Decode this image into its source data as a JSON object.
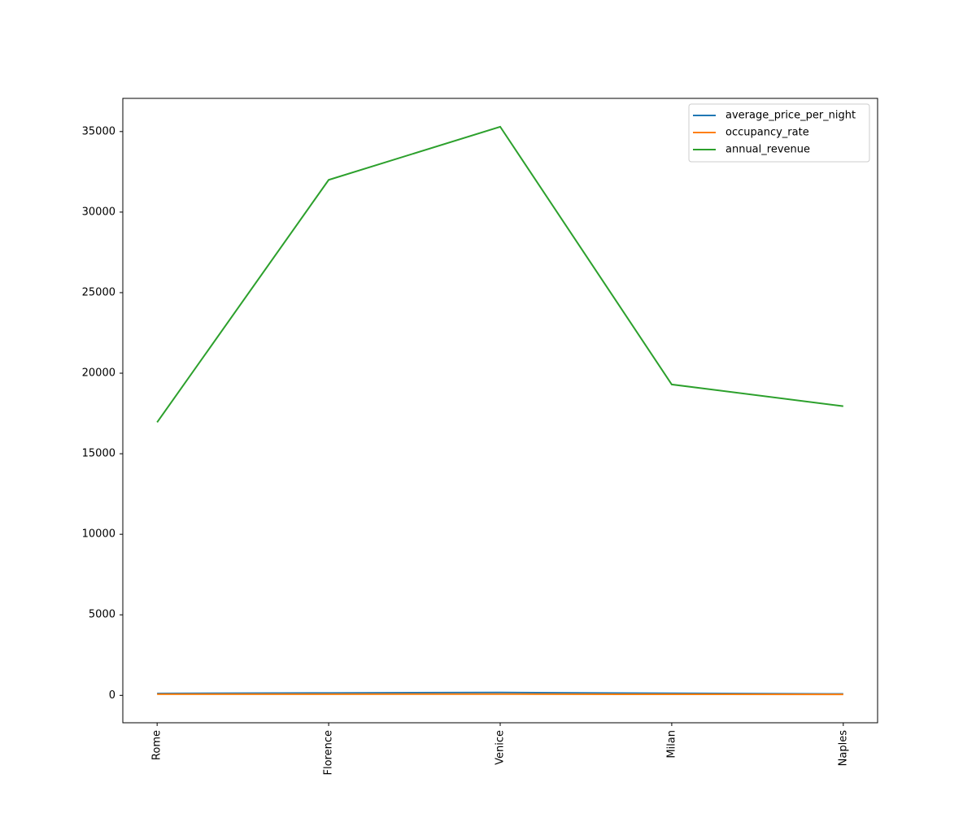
{
  "chart_data": {
    "type": "line",
    "categories": [
      "Rome",
      "Florence",
      "Venice",
      "Milan",
      "Naples"
    ],
    "series": [
      {
        "name": "average_price_per_night",
        "color": "#1f77b4",
        "values": [
          120,
          150,
          180,
          130,
          90
        ]
      },
      {
        "name": "occupancy_rate",
        "color": "#ff7f0e",
        "values": [
          70,
          75,
          80,
          65,
          60
        ]
      },
      {
        "name": "annual_revenue",
        "color": "#2ca02c",
        "values": [
          16950,
          32000,
          35300,
          19300,
          17950
        ]
      }
    ],
    "ylim": [
      -1700,
      37060
    ],
    "yticks": [
      0,
      5000,
      10000,
      15000,
      20000,
      25000,
      30000,
      35000
    ],
    "legend": "upper right"
  }
}
